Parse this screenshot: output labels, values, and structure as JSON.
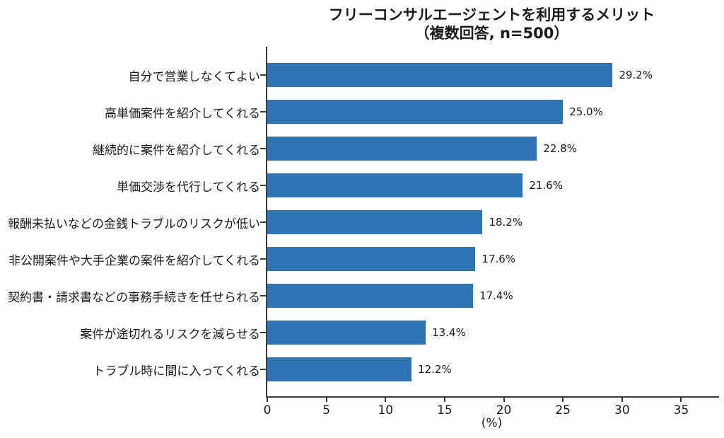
{
  "chart_data": {
    "type": "bar",
    "orientation": "horizontal",
    "title": "フリーコンサルエージェントを利用するメリット",
    "subtitle": "（複数回答, n=500）",
    "categories": [
      "自分で営業しなくてよい",
      "高単価案件を紹介してくれる",
      "継続的に案件を紹介してくれる",
      "単価交渉を代行してくれる",
      "報酬未払いなどの金銭トラブルのリスクが低い",
      "非公開案件や大手企業の案件を紹介してくれる",
      "契約書・請求書などの事務手続きを任せられる",
      "案件が途切れるリスクを減らせる",
      "トラブル時に間に入ってくれる"
    ],
    "values": [
      29.2,
      25.0,
      22.8,
      21.6,
      18.2,
      17.6,
      17.4,
      13.4,
      12.2
    ],
    "value_labels": [
      "29.2%",
      "25.0%",
      "22.8%",
      "21.6%",
      "18.2%",
      "17.6%",
      "17.4%",
      "13.4%",
      "12.2%"
    ],
    "xlabel": "(%)",
    "xticks": [
      0,
      5,
      10,
      15,
      20,
      25,
      30,
      35
    ],
    "xtick_labels": [
      "0",
      "5",
      "10",
      "15",
      "20",
      "25",
      "30",
      "35"
    ],
    "xlim": [
      0,
      38.2
    ],
    "grid": false,
    "colors": {
      "bar": "#2e74b5",
      "axis": "#3a3a3a",
      "text": "#1a1a1a",
      "background": "#ffffff"
    }
  }
}
